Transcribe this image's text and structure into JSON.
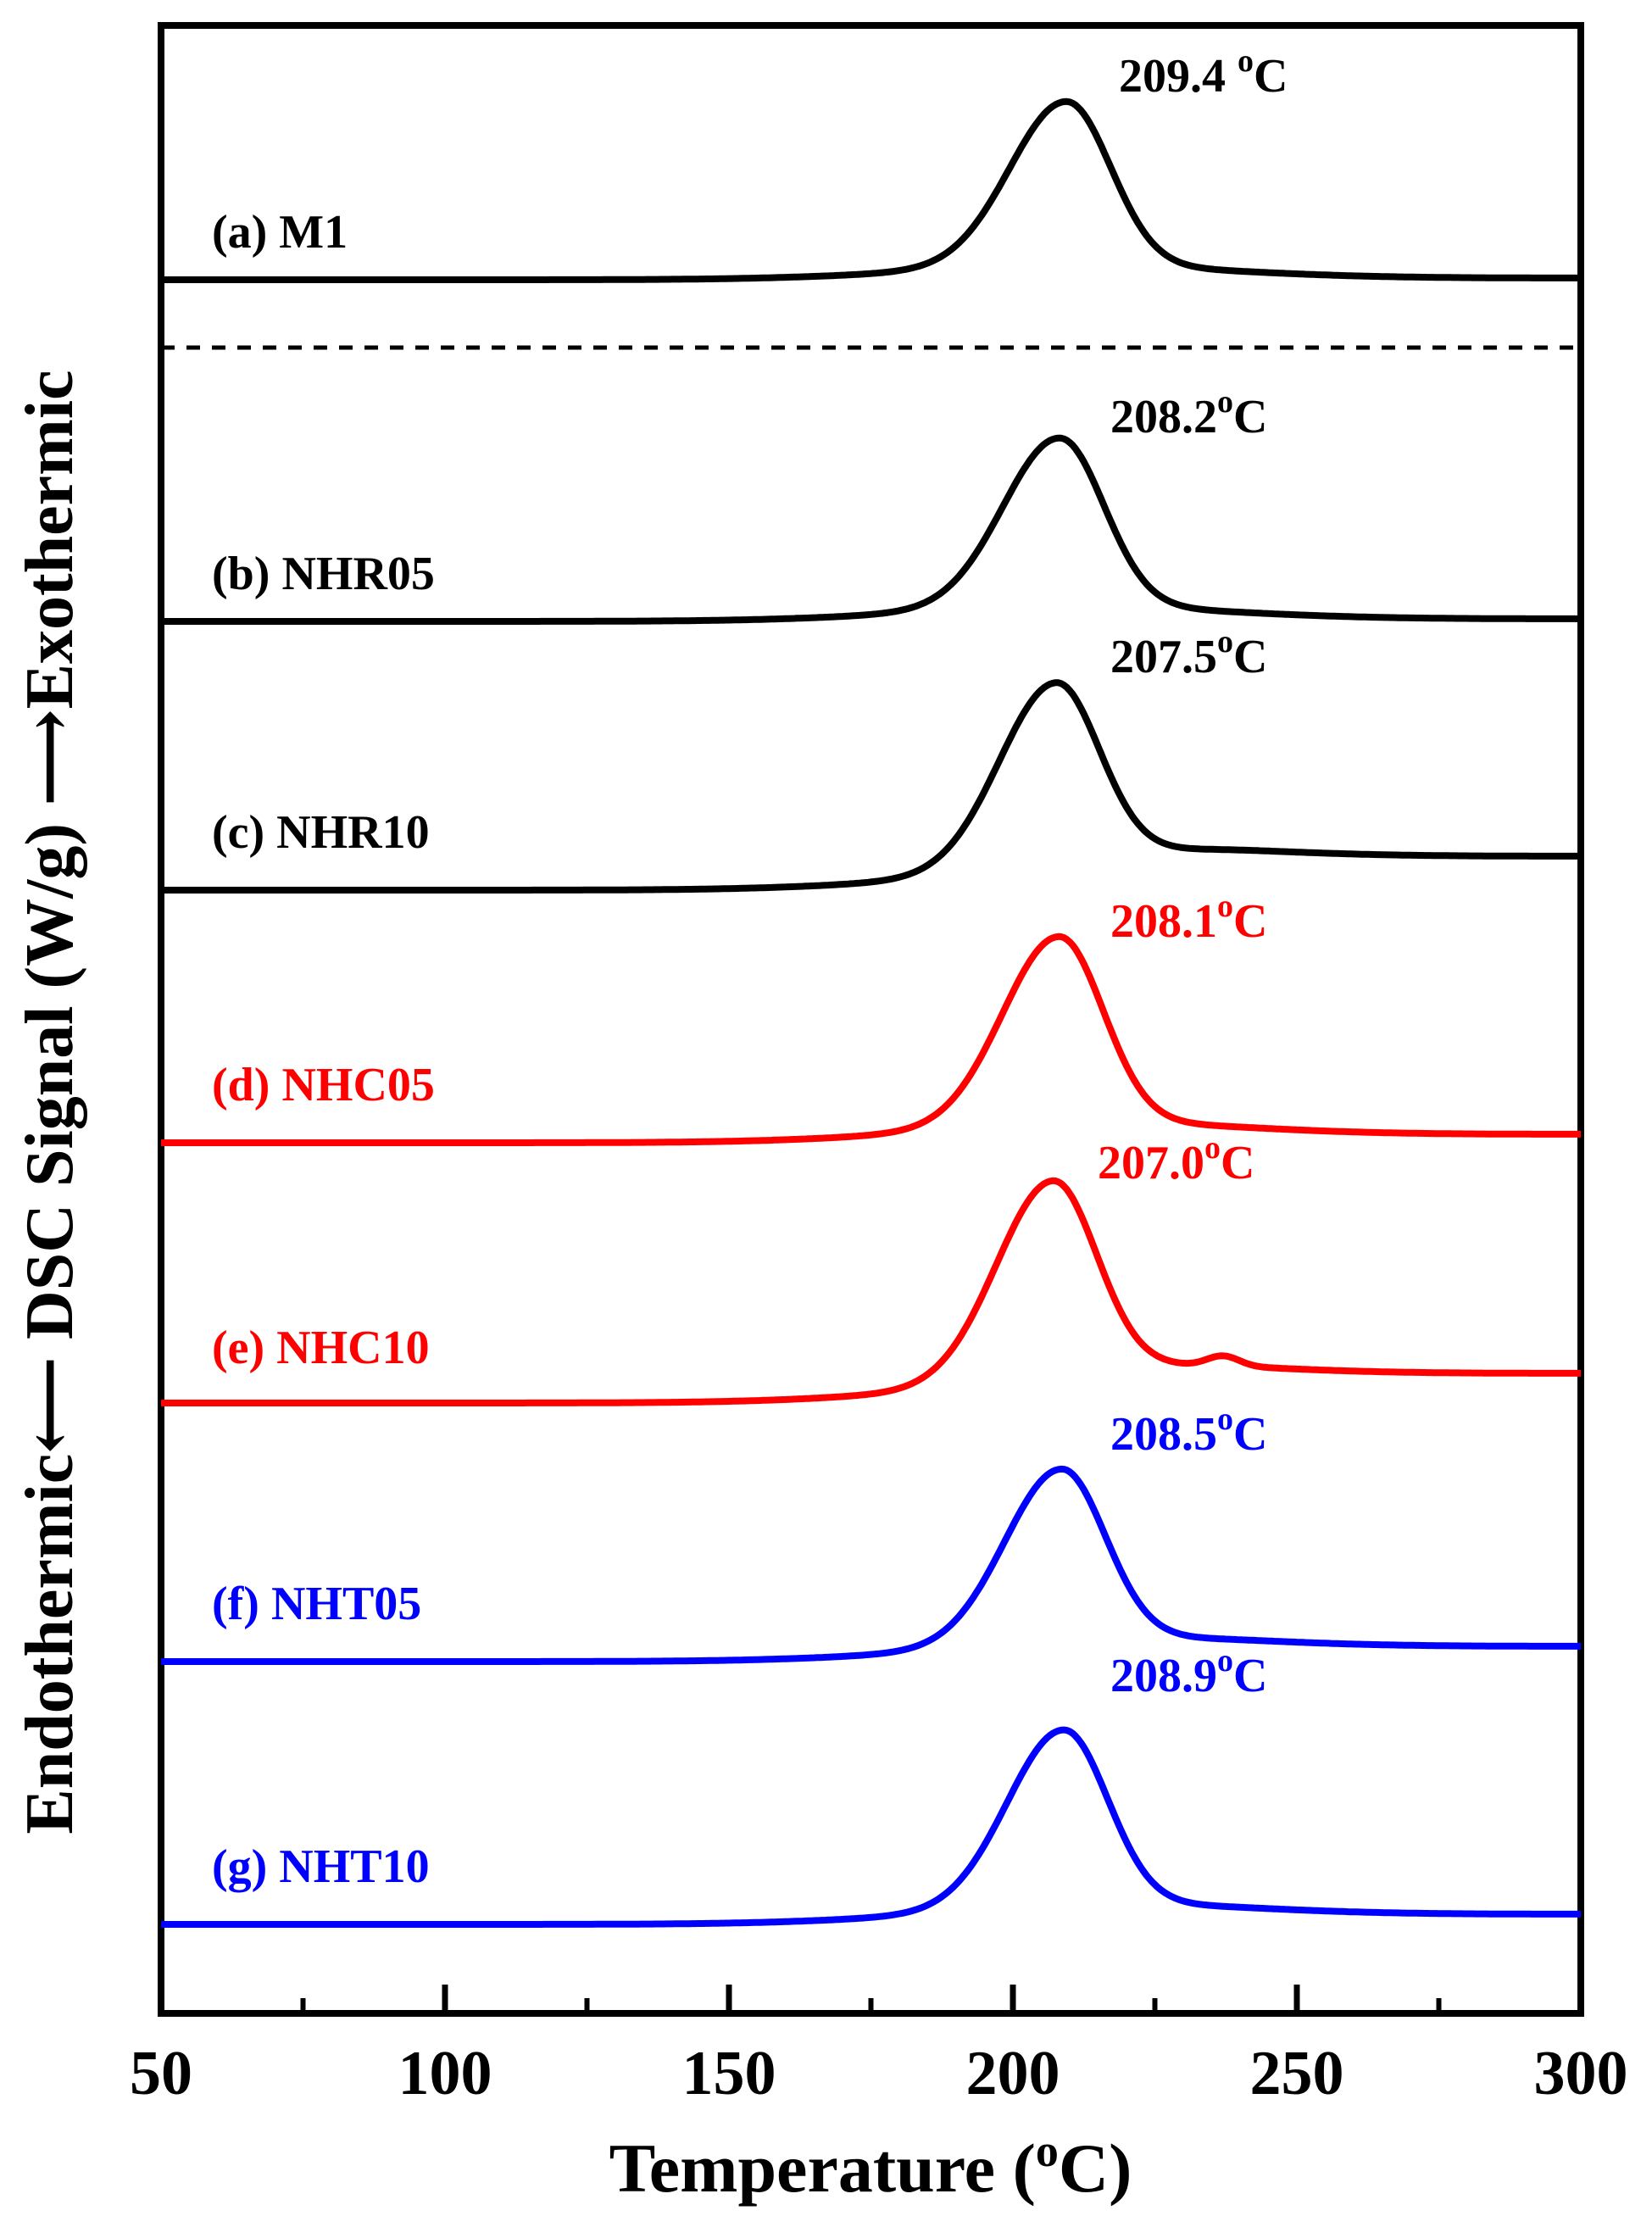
{
  "chart_data": {
    "type": "line",
    "title": "",
    "xlabel": "Temperature (",
    "xlabel_sup": "o",
    "xlabel_unit": "C)",
    "ylabel_left": "Endothermic",
    "ylabel_middle": "DSC Signal (W/g)",
    "ylabel_right": "Exothermic",
    "xlim": [
      50,
      300
    ],
    "x_ticks": [
      50,
      100,
      150,
      200,
      250,
      300
    ],
    "x_tick_labels": [
      "50",
      "100",
      "150",
      "200",
      "250",
      "300"
    ],
    "x_minor_ticks": [
      75,
      125,
      175,
      225,
      275
    ],
    "grid": false,
    "legend": "none",
    "separator": "dashed line between (a) and (b)",
    "series": [
      {
        "key": "a",
        "name": "(a) M1",
        "color": "#000000",
        "peak_x": 209.4,
        "peak_label": "209.4 ",
        "baseline_start": 0,
        "baseline_end": 0,
        "peak_height": 1.0,
        "shoulder": false
      },
      {
        "key": "b",
        "name": "(b) NHR05",
        "color": "#000000",
        "peak_x": 208.2,
        "peak_label": "208.2",
        "baseline_start": 0,
        "baseline_end": 0,
        "peak_height": 1.0,
        "shoulder": false
      },
      {
        "key": "c",
        "name": "(c) NHR10",
        "color": "#000000",
        "peak_x": 207.5,
        "peak_label": "207.5",
        "baseline_start": 0,
        "baseline_end": 0.2,
        "peak_height": 1.0,
        "shoulder": false
      },
      {
        "key": "d",
        "name": "(d) NHC05",
        "color": "#ff0000",
        "peak_x": 208.1,
        "peak_label": "208.1",
        "baseline_start": 0,
        "baseline_end": 0.05,
        "peak_height": 1.0,
        "shoulder": false
      },
      {
        "key": "e",
        "name": "(e) NHC10",
        "color": "#ff0000",
        "peak_x": 207.0,
        "peak_label": "207.0",
        "baseline_start": 0,
        "baseline_end": 0.2,
        "peak_height": 1.0,
        "shoulder": true
      },
      {
        "key": "f",
        "name": "(f) NHT05",
        "color": "#0000ff",
        "peak_x": 208.5,
        "peak_label": "208.5",
        "baseline_start": 0,
        "baseline_end": 0.1,
        "peak_height": 1.0,
        "shoulder": false
      },
      {
        "key": "g",
        "name": "(g) NHT10",
        "color": "#0000ff",
        "peak_x": 208.9,
        "peak_label": "208.9",
        "baseline_start": 0,
        "baseline_end": 0.05,
        "peak_height": 1.0,
        "shoulder": false
      }
    ],
    "unit_sup": "o",
    "unit_letter": "C"
  }
}
